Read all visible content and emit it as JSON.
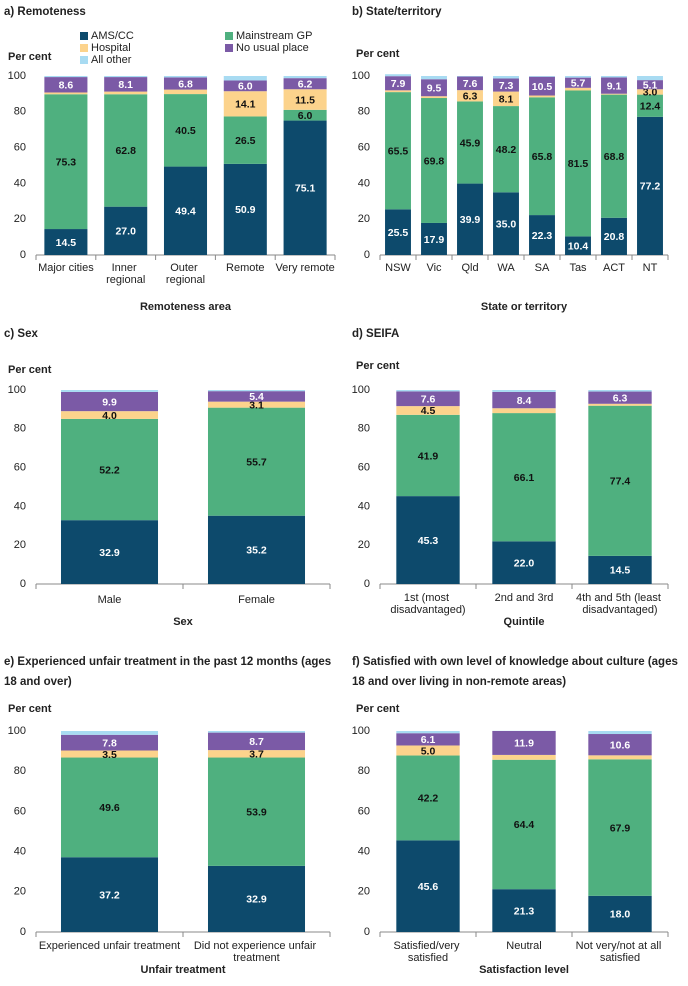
{
  "chart_data": [
    {
      "type": "bar",
      "stacked": true,
      "title": "a) Remoteness",
      "ylabel": "Per cent",
      "xlabel": "Remoteness area",
      "categories": [
        "Major cities",
        "Inner regional",
        "Outer regional",
        "Remote",
        "Very remote"
      ],
      "ylim": [
        0,
        100
      ],
      "yticks": [
        0,
        20,
        40,
        60,
        80,
        100
      ],
      "legend": "top",
      "series": [
        {
          "name": "AMS/CC",
          "color": "#0d4a6c",
          "label_color": "#ffffff",
          "values": [
            14.5,
            27.0,
            49.4,
            50.9,
            75.1
          ],
          "value_labels": [
            "14.5",
            "27.0",
            "49.4",
            "50.9",
            "75.1"
          ]
        },
        {
          "name": "Mainstream GP",
          "color": "#4fb07f",
          "label_color": "#111111",
          "values": [
            75.3,
            62.8,
            40.5,
            26.5,
            6.0
          ],
          "value_labels": [
            "75.3",
            "62.8",
            "40.5",
            "26.5",
            "6.0"
          ]
        },
        {
          "name": "Hospital",
          "color": "#fcd38c",
          "label_color": "#111111",
          "values": [
            1.0,
            1.5,
            2.5,
            14.1,
            11.5
          ],
          "value_labels": [
            null,
            null,
            null,
            "14.1",
            "11.5"
          ]
        },
        {
          "name": "No usual place",
          "color": "#7b5aa6",
          "label_color": "#ffffff",
          "values": [
            8.6,
            8.1,
            6.8,
            6.0,
            6.2
          ],
          "value_labels": [
            "8.6",
            "8.1",
            "6.8",
            "6.0",
            "6.2"
          ]
        },
        {
          "name": "All other",
          "color": "#a8dbf2",
          "label_color": "#111111",
          "values": [
            0.6,
            0.6,
            0.8,
            2.5,
            1.2
          ],
          "value_labels": [
            null,
            null,
            null,
            null,
            null
          ]
        }
      ]
    },
    {
      "type": "bar",
      "stacked": true,
      "title": "b) State/territory",
      "ylabel": "Per cent",
      "xlabel": "State or territory",
      "categories": [
        "NSW",
        "Vic",
        "Qld",
        "WA",
        "SA",
        "Tas",
        "ACT",
        "NT"
      ],
      "ylim": [
        0,
        100
      ],
      "yticks": [
        0,
        20,
        40,
        60,
        80,
        100
      ],
      "series": [
        {
          "color": "#0d4a6c",
          "label_color": "#ffffff",
          "values": [
            25.5,
            17.9,
            39.9,
            35.0,
            22.3,
            10.4,
            20.8,
            77.2
          ],
          "value_labels": [
            "25.5",
            "17.9",
            "39.9",
            "35.0",
            "22.3",
            "10.4",
            "20.8",
            "77.2"
          ]
        },
        {
          "color": "#4fb07f",
          "label_color": "#111111",
          "values": [
            65.5,
            69.8,
            45.9,
            48.2,
            65.8,
            81.5,
            68.8,
            12.4
          ],
          "value_labels": [
            "65.5",
            "69.8",
            "45.9",
            "48.2",
            "65.8",
            "81.5",
            "68.8",
            "12.4"
          ]
        },
        {
          "color": "#fcd38c",
          "label_color": "#111111",
          "values": [
            1.0,
            1.0,
            6.3,
            8.1,
            1.0,
            1.5,
            0.5,
            3.0
          ],
          "value_labels": [
            null,
            null,
            "6.3",
            "8.1",
            null,
            null,
            null,
            "3.0"
          ]
        },
        {
          "color": "#7b5aa6",
          "label_color": "#ffffff",
          "values": [
            7.9,
            9.5,
            7.6,
            7.3,
            10.5,
            5.7,
            9.1,
            5.1
          ],
          "value_labels": [
            "7.9",
            "9.5",
            "7.6",
            "7.3",
            "10.5",
            "5.7",
            "9.1",
            "5.1"
          ]
        },
        {
          "color": "#a8dbf2",
          "label_color": "#111111",
          "values": [
            1.1,
            1.8,
            0.3,
            1.4,
            0.4,
            0.9,
            0.8,
            2.3
          ],
          "value_labels": [
            null,
            null,
            null,
            null,
            null,
            null,
            null,
            null
          ]
        }
      ]
    },
    {
      "type": "bar",
      "stacked": true,
      "title": "c) Sex",
      "ylabel": "Per cent",
      "xlabel": "Sex",
      "categories": [
        "Male",
        "Female"
      ],
      "ylim": [
        0,
        100
      ],
      "yticks": [
        0,
        20,
        40,
        60,
        80,
        100
      ],
      "series": [
        {
          "color": "#0d4a6c",
          "label_color": "#ffffff",
          "values": [
            32.9,
            35.2
          ],
          "value_labels": [
            "32.9",
            "35.2"
          ]
        },
        {
          "color": "#4fb07f",
          "label_color": "#111111",
          "values": [
            52.2,
            55.7
          ],
          "value_labels": [
            "52.2",
            "55.7"
          ]
        },
        {
          "color": "#fcd38c",
          "label_color": "#111111",
          "values": [
            4.0,
            3.1
          ],
          "value_labels": [
            "4.0",
            "3.1"
          ]
        },
        {
          "color": "#7b5aa6",
          "label_color": "#ffffff",
          "values": [
            9.9,
            5.4
          ],
          "value_labels": [
            "9.9",
            "5.4"
          ]
        },
        {
          "color": "#a8dbf2",
          "label_color": "#111111",
          "values": [
            1.0,
            0.6
          ],
          "value_labels": [
            null,
            null
          ]
        }
      ]
    },
    {
      "type": "bar",
      "stacked": true,
      "title": "d) SEIFA",
      "ylabel": "Per cent",
      "xlabel": "Quintile",
      "categories": [
        "1st (most disadvantaged)",
        "2nd and 3rd",
        "4th and 5th (least disadvantaged)"
      ],
      "ylim": [
        0,
        100
      ],
      "yticks": [
        0,
        20,
        40,
        60,
        80,
        100
      ],
      "series": [
        {
          "color": "#0d4a6c",
          "label_color": "#ffffff",
          "values": [
            45.3,
            22.0,
            14.5
          ],
          "value_labels": [
            "45.3",
            "22.0",
            "14.5"
          ]
        },
        {
          "color": "#4fb07f",
          "label_color": "#111111",
          "values": [
            41.9,
            66.1,
            77.4
          ],
          "value_labels": [
            "41.9",
            "66.1",
            "77.4"
          ]
        },
        {
          "color": "#fcd38c",
          "label_color": "#111111",
          "values": [
            4.5,
            2.5,
            1.0
          ],
          "value_labels": [
            "4.5",
            null,
            null
          ]
        },
        {
          "color": "#7b5aa6",
          "label_color": "#ffffff",
          "values": [
            7.6,
            8.4,
            6.3
          ],
          "value_labels": [
            "7.6",
            "8.4",
            "6.3"
          ]
        },
        {
          "color": "#a8dbf2",
          "label_color": "#111111",
          "values": [
            0.7,
            1.0,
            0.8
          ],
          "value_labels": [
            null,
            null,
            null
          ]
        }
      ]
    },
    {
      "type": "bar",
      "stacked": true,
      "title": "e) Experienced unfair treatment in the past 12 months (ages 18 and over)",
      "ylabel": "Per cent",
      "xlabel": "Unfair treatment",
      "categories": [
        "Experienced unfair treatment",
        "Did not experience unfair treatment"
      ],
      "ylim": [
        0,
        100
      ],
      "yticks": [
        0,
        20,
        40,
        60,
        80,
        100
      ],
      "series": [
        {
          "color": "#0d4a6c",
          "label_color": "#ffffff",
          "values": [
            37.2,
            32.9
          ],
          "value_labels": [
            "37.2",
            "32.9"
          ]
        },
        {
          "color": "#4fb07f",
          "label_color": "#111111",
          "values": [
            49.6,
            53.9
          ],
          "value_labels": [
            "49.6",
            "53.9"
          ]
        },
        {
          "color": "#fcd38c",
          "label_color": "#111111",
          "values": [
            3.5,
            3.7
          ],
          "value_labels": [
            "3.5",
            "3.7"
          ]
        },
        {
          "color": "#7b5aa6",
          "label_color": "#ffffff",
          "values": [
            7.8,
            8.7
          ],
          "value_labels": [
            "7.8",
            "8.7"
          ]
        },
        {
          "color": "#a8dbf2",
          "label_color": "#111111",
          "values": [
            1.9,
            0.8
          ],
          "value_labels": [
            null,
            null
          ]
        }
      ]
    },
    {
      "type": "bar",
      "stacked": true,
      "title": "f) Satisfied with own level of knowledge about culture (ages 18 and over living in non-remote areas)",
      "ylabel": "Per cent",
      "xlabel": "Satisfaction level",
      "categories": [
        "Satisfied/very satisfied",
        "Neutral",
        "Not very/not at all satisfied"
      ],
      "ylim": [
        0,
        100
      ],
      "yticks": [
        0,
        20,
        40,
        60,
        80,
        100
      ],
      "series": [
        {
          "color": "#0d4a6c",
          "label_color": "#ffffff",
          "values": [
            45.6,
            21.3,
            18.0
          ],
          "value_labels": [
            "45.6",
            "21.3",
            "18.0"
          ]
        },
        {
          "color": "#4fb07f",
          "label_color": "#111111",
          "values": [
            42.2,
            64.4,
            67.9
          ],
          "value_labels": [
            "42.2",
            "64.4",
            "67.9"
          ]
        },
        {
          "color": "#fcd38c",
          "label_color": "#111111",
          "values": [
            5.0,
            2.4,
            2.0
          ],
          "value_labels": [
            "5.0",
            null,
            null
          ]
        },
        {
          "color": "#7b5aa6",
          "label_color": "#ffffff",
          "values": [
            6.1,
            11.9,
            10.6
          ],
          "value_labels": [
            "6.1",
            "11.9",
            "10.6"
          ]
        },
        {
          "color": "#a8dbf2",
          "label_color": "#111111",
          "values": [
            1.1,
            0.1,
            1.5
          ],
          "value_labels": [
            null,
            null,
            null
          ]
        }
      ]
    }
  ]
}
